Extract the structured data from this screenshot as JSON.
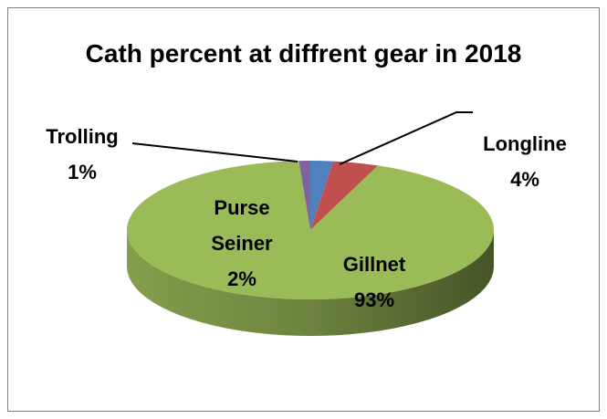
{
  "chart_data": {
    "type": "pie",
    "title": "Cath percent at diffrent gear in 2018",
    "categories": [
      "Purse Seiner",
      "Longline",
      "Gillnet",
      "Trolling"
    ],
    "values": [
      2,
      4,
      93,
      1
    ],
    "value_labels": [
      "2%",
      "4%",
      "93%",
      "1%"
    ],
    "colors": [
      "#4f81bd",
      "#c0504d",
      "#9bbb59",
      "#8064a2"
    ]
  }
}
